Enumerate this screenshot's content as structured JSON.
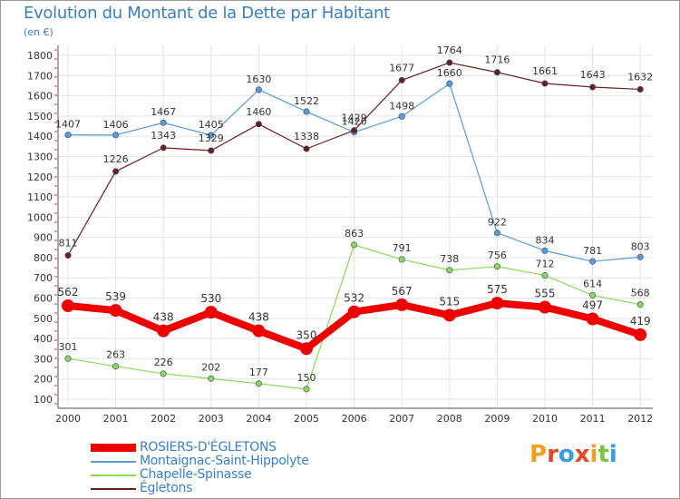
{
  "title": "Evolution du Montant de la Dette par Habitant",
  "subtitle": "(en €)",
  "logo_text": [
    "P",
    "r",
    "o",
    "x",
    "i",
    "t",
    "i"
  ],
  "logo_colors": [
    "#f0a020",
    "#e8462a",
    "#3a9be0",
    "#e8462a",
    "#f0a020",
    "#7dc241",
    "#3a9be0"
  ],
  "chart_data": {
    "type": "line",
    "title": "Evolution du Montant de la Dette par Habitant",
    "ylabel": "(en €)",
    "x": [
      "2000",
      "2001",
      "2002",
      "2003",
      "2004",
      "2005",
      "2006",
      "2007",
      "2008",
      "2009",
      "2010",
      "2011",
      "2012"
    ],
    "ylim": [
      100,
      1800
    ],
    "yticks": [
      100,
      200,
      300,
      400,
      500,
      600,
      700,
      800,
      900,
      1000,
      1100,
      1200,
      1300,
      1400,
      1500,
      1600,
      1700,
      1800
    ],
    "grid": true,
    "series": [
      {
        "name": "Montaignac-Saint-Hippolyte",
        "color": "#5b9bd5",
        "values": [
          1407,
          1406,
          1467,
          1405,
          1630,
          1522,
          1420,
          1498,
          1660,
          922,
          834,
          781,
          803
        ]
      },
      {
        "name": "Chapelle-Spinasse",
        "color": "#8fd855",
        "values": [
          301,
          263,
          226,
          202,
          177,
          150,
          863,
          791,
          738,
          756,
          712,
          614,
          568
        ]
      },
      {
        "name": "Égletons",
        "color": "#6b1e1e",
        "values": [
          811,
          1226,
          1343,
          1329,
          1460,
          1338,
          1429,
          1677,
          1764,
          1716,
          1661,
          1643,
          1632
        ]
      },
      {
        "name": "ROSIERS-D'ÉGLETONS",
        "color": "#ee0000",
        "values": [
          562,
          539,
          438,
          530,
          438,
          350,
          532,
          567,
          515,
          575,
          555,
          497,
          419
        ]
      }
    ],
    "legend": [
      {
        "name": "ROSIERS-D'ÉGLETONS",
        "color": "#ee0000"
      },
      {
        "name": "Montaignac-Saint-Hippolyte",
        "color": "#5b9bd5"
      },
      {
        "name": "Chapelle-Spinasse",
        "color": "#8fd855"
      },
      {
        "name": "Égletons",
        "color": "#6b1e1e"
      }
    ],
    "legend_position": "bottom-left"
  }
}
